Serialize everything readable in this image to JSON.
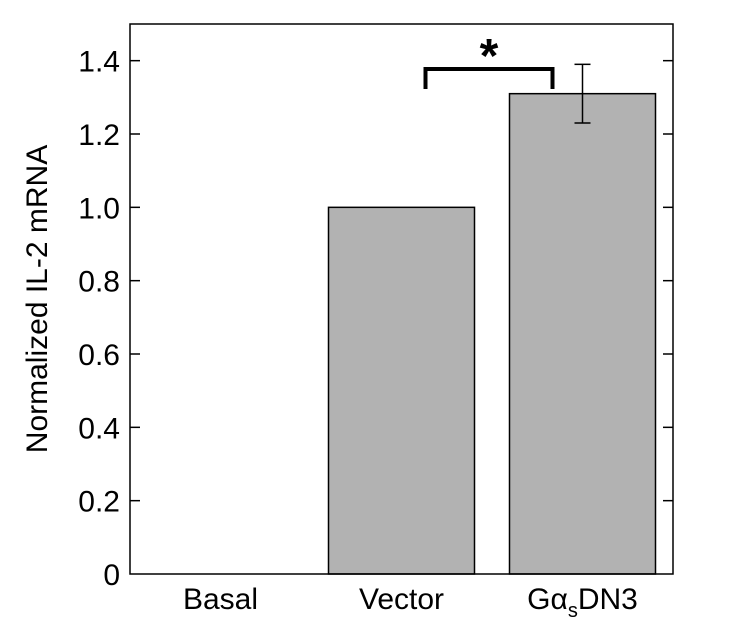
{
  "chart_data": {
    "type": "bar",
    "categories": [
      "Basal",
      "Vector",
      "GαsDN3"
    ],
    "category_labels": [
      {
        "main": "Basal",
        "greek": "",
        "sub": "",
        "tail": ""
      },
      {
        "main": "Vector",
        "greek": "",
        "sub": "",
        "tail": ""
      },
      {
        "main": "G",
        "greek": "α",
        "sub": "s",
        "tail": "DN3"
      }
    ],
    "values": [
      0,
      1.0,
      1.31
    ],
    "errors": [
      null,
      null,
      0.08
    ],
    "ylabel": "Normalized IL-2 mRNA",
    "xlabel": "",
    "ylim": [
      0,
      1.5
    ],
    "yticks": [
      0,
      0.2,
      0.4,
      0.6,
      0.8,
      1.0,
      1.2,
      1.4
    ],
    "ytick_labels": [
      "0",
      "0.2",
      "0.4",
      "0.6",
      "0.8",
      "1.0",
      "1.2",
      "1.4"
    ],
    "bar_color": "#b2b2b2",
    "bar_edge_color": "#000000",
    "grid": false,
    "significance": {
      "from": "Vector",
      "to": "GαsDN3",
      "label": "*"
    }
  }
}
